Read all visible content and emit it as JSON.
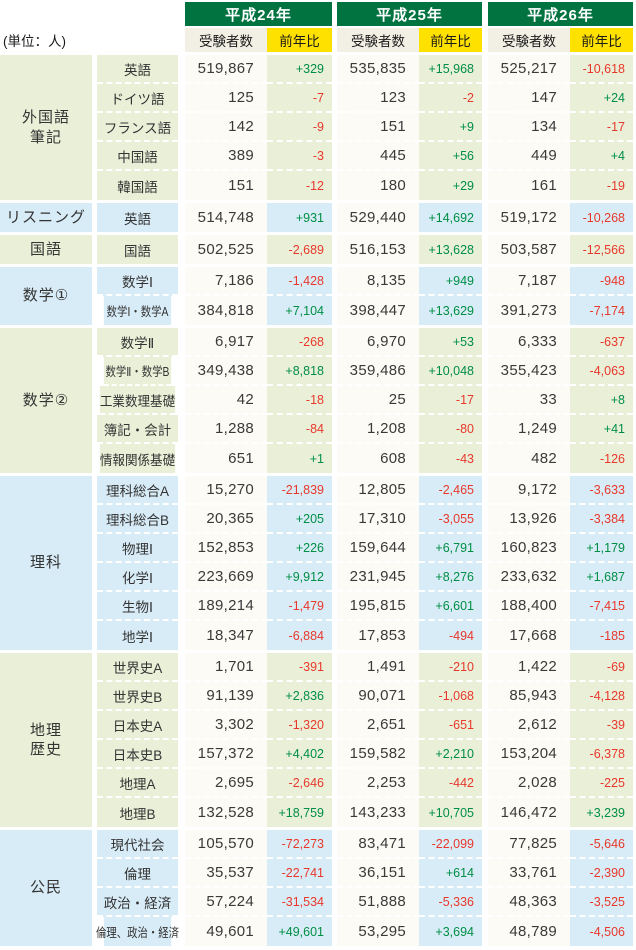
{
  "colors": {
    "header_green": "#007340",
    "yoy_yellow": "#ffe100",
    "examinees_header_beige": "#f2efe4",
    "green_section_tint": "#eaf0d8",
    "blue_section_tint": "#d8ecf7",
    "examinees_cell_bg": "#fcfbf5",
    "positive_text": "#008e44",
    "negative_text": "#e8382c"
  },
  "chart_data": {
    "type": "table",
    "unit_label": "(単位：人)",
    "years": [
      "平成24年",
      "平成25年",
      "平成26年"
    ],
    "measure_labels": {
      "examinees": "受験者数",
      "yoy": "前年比"
    },
    "sections": [
      {
        "category": "外国語\n筆記",
        "tint": "green",
        "rows": [
          {
            "subject": "英語",
            "values": [
              [
                "519,867",
                "+329"
              ],
              [
                "535,835",
                "+15,968"
              ],
              [
                "525,217",
                "-10,618"
              ]
            ]
          },
          {
            "subject": "ドイツ語",
            "values": [
              [
                "125",
                "-7"
              ],
              [
                "123",
                "-2"
              ],
              [
                "147",
                "+24"
              ]
            ]
          },
          {
            "subject": "フランス語",
            "values": [
              [
                "142",
                "-9"
              ],
              [
                "151",
                "+9"
              ],
              [
                "134",
                "-17"
              ]
            ]
          },
          {
            "subject": "中国語",
            "values": [
              [
                "389",
                "-3"
              ],
              [
                "445",
                "+56"
              ],
              [
                "449",
                "+4"
              ]
            ]
          },
          {
            "subject": "韓国語",
            "values": [
              [
                "151",
                "-12"
              ],
              [
                "180",
                "+29"
              ],
              [
                "161",
                "-19"
              ]
            ]
          }
        ]
      },
      {
        "category": "リスニング",
        "tint": "blue",
        "rows": [
          {
            "subject": "英語",
            "values": [
              [
                "514,748",
                "+931"
              ],
              [
                "529,440",
                "+14,692"
              ],
              [
                "519,172",
                "-10,268"
              ]
            ]
          }
        ]
      },
      {
        "category": "国語",
        "tint": "green",
        "rows": [
          {
            "subject": "国語",
            "values": [
              [
                "502,525",
                "-2,689"
              ],
              [
                "516,153",
                "+13,628"
              ],
              [
                "503,587",
                "-12,566"
              ]
            ]
          }
        ]
      },
      {
        "category": "数学①",
        "tint": "blue",
        "rows": [
          {
            "subject": "数学Ⅰ",
            "values": [
              [
                "7,186",
                "-1,428"
              ],
              [
                "8,135",
                "+949"
              ],
              [
                "7,187",
                "-948"
              ]
            ]
          },
          {
            "subject": "数学Ⅰ・数学A",
            "values": [
              [
                "384,818",
                "+7,104"
              ],
              [
                "398,447",
                "+13,629"
              ],
              [
                "391,273",
                "-7,174"
              ]
            ]
          }
        ]
      },
      {
        "category": "数学②",
        "tint": "green",
        "rows": [
          {
            "subject": "数学Ⅱ",
            "values": [
              [
                "6,917",
                "-268"
              ],
              [
                "6,970",
                "+53"
              ],
              [
                "6,333",
                "-637"
              ]
            ]
          },
          {
            "subject": "数学Ⅱ・数学B",
            "values": [
              [
                "349,438",
                "+8,818"
              ],
              [
                "359,486",
                "+10,048"
              ],
              [
                "355,423",
                "-4,063"
              ]
            ]
          },
          {
            "subject": "工業数理基礎",
            "values": [
              [
                "42",
                "-18"
              ],
              [
                "25",
                "-17"
              ],
              [
                "33",
                "+8"
              ]
            ]
          },
          {
            "subject": "簿記・会計",
            "values": [
              [
                "1,288",
                "-84"
              ],
              [
                "1,208",
                "-80"
              ],
              [
                "1,249",
                "+41"
              ]
            ]
          },
          {
            "subject": "情報関係基礎",
            "values": [
              [
                "651",
                "+1"
              ],
              [
                "608",
                "-43"
              ],
              [
                "482",
                "-126"
              ]
            ]
          }
        ]
      },
      {
        "category": "理科",
        "tint": "blue",
        "rows": [
          {
            "subject": "理科総合A",
            "values": [
              [
                "15,270",
                "-21,839"
              ],
              [
                "12,805",
                "-2,465"
              ],
              [
                "9,172",
                "-3,633"
              ]
            ]
          },
          {
            "subject": "理科総合B",
            "values": [
              [
                "20,365",
                "+205"
              ],
              [
                "17,310",
                "-3,055"
              ],
              [
                "13,926",
                "-3,384"
              ]
            ]
          },
          {
            "subject": "物理Ⅰ",
            "values": [
              [
                "152,853",
                "+226"
              ],
              [
                "159,644",
                "+6,791"
              ],
              [
                "160,823",
                "+1,179"
              ]
            ]
          },
          {
            "subject": "化学Ⅰ",
            "values": [
              [
                "223,669",
                "+9,912"
              ],
              [
                "231,945",
                "+8,276"
              ],
              [
                "233,632",
                "+1,687"
              ]
            ]
          },
          {
            "subject": "生物Ⅰ",
            "values": [
              [
                "189,214",
                "-1,479"
              ],
              [
                "195,815",
                "+6,601"
              ],
              [
                "188,400",
                "-7,415"
              ]
            ]
          },
          {
            "subject": "地学Ⅰ",
            "values": [
              [
                "18,347",
                "-6,884"
              ],
              [
                "17,853",
                "-494"
              ],
              [
                "17,668",
                "-185"
              ]
            ]
          }
        ]
      },
      {
        "category": "地理\n歴史",
        "tint": "green",
        "rows": [
          {
            "subject": "世界史A",
            "values": [
              [
                "1,701",
                "-391"
              ],
              [
                "1,491",
                "-210"
              ],
              [
                "1,422",
                "-69"
              ]
            ]
          },
          {
            "subject": "世界史B",
            "values": [
              [
                "91,139",
                "+2,836"
              ],
              [
                "90,071",
                "-1,068"
              ],
              [
                "85,943",
                "-4,128"
              ]
            ]
          },
          {
            "subject": "日本史A",
            "values": [
              [
                "3,302",
                "-1,320"
              ],
              [
                "2,651",
                "-651"
              ],
              [
                "2,612",
                "-39"
              ]
            ]
          },
          {
            "subject": "日本史B",
            "values": [
              [
                "157,372",
                "+4,402"
              ],
              [
                "159,582",
                "+2,210"
              ],
              [
                "153,204",
                "-6,378"
              ]
            ]
          },
          {
            "subject": "地理A",
            "values": [
              [
                "2,695",
                "-2,646"
              ],
              [
                "2,253",
                "-442"
              ],
              [
                "2,028",
                "-225"
              ]
            ]
          },
          {
            "subject": "地理B",
            "values": [
              [
                "132,528",
                "+18,759"
              ],
              [
                "143,233",
                "+10,705"
              ],
              [
                "146,472",
                "+3,239"
              ]
            ]
          }
        ]
      },
      {
        "category": "公民",
        "tint": "blue",
        "rows": [
          {
            "subject": "現代社会",
            "values": [
              [
                "105,570",
                "-72,273"
              ],
              [
                "83,471",
                "-22,099"
              ],
              [
                "77,825",
                "-5,646"
              ]
            ]
          },
          {
            "subject": "倫理",
            "values": [
              [
                "35,537",
                "-22,741"
              ],
              [
                "36,151",
                "+614"
              ],
              [
                "33,761",
                "-2,390"
              ]
            ]
          },
          {
            "subject": "政治・経済",
            "values": [
              [
                "57,224",
                "-31,534"
              ],
              [
                "51,888",
                "-5,336"
              ],
              [
                "48,363",
                "-3,525"
              ]
            ]
          },
          {
            "subject": "倫理、政治・経済",
            "values": [
              [
                "49,601",
                "+49,601"
              ],
              [
                "53,295",
                "+3,694"
              ],
              [
                "48,789",
                "-4,506"
              ]
            ]
          }
        ]
      }
    ]
  }
}
